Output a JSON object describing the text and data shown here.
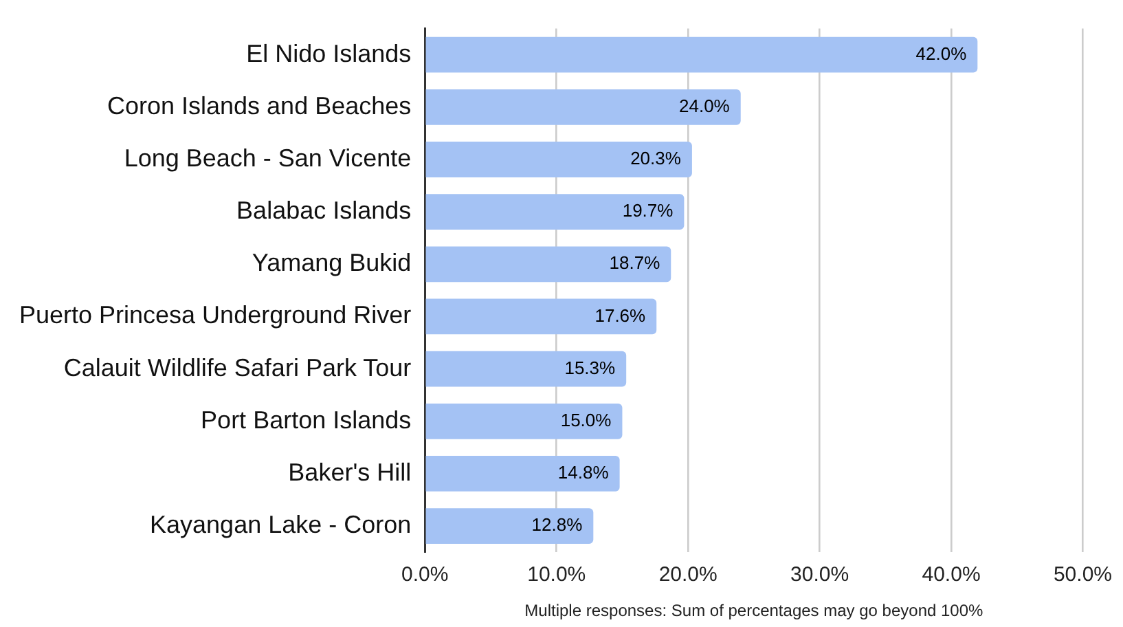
{
  "chart_data": {
    "type": "bar",
    "orientation": "horizontal",
    "xlabel": "Multiple responses: Sum of percentages may go beyond 100%",
    "categories": [
      "El Nido Islands",
      "Coron Islands and Beaches",
      "Long Beach - San Vicente",
      "Balabac Islands",
      "Yamang Bukid",
      "Puerto Princesa Underground River",
      "Calauit Wildlife Safari Park Tour",
      "Port Barton Islands",
      "Baker's Hill",
      "Kayangan Lake - Coron"
    ],
    "values": [
      42.0,
      24.0,
      20.3,
      19.7,
      18.7,
      17.6,
      15.3,
      15.0,
      14.8,
      12.8
    ],
    "value_labels": [
      "42.0%",
      "24.0%",
      "20.3%",
      "19.7%",
      "18.7%",
      "17.6%",
      "15.3%",
      "15.0%",
      "14.8%",
      "12.8%"
    ],
    "color": "#a4c2f4",
    "xlim": [
      0,
      50
    ],
    "xticks": [
      {
        "value": 0,
        "label": "0.0%"
      },
      {
        "value": 10,
        "label": "10.0%"
      },
      {
        "value": 20,
        "label": "20.0%"
      },
      {
        "value": 30,
        "label": "30.0%"
      },
      {
        "value": 40,
        "label": "40.0%"
      },
      {
        "value": 50,
        "label": "50.0%"
      }
    ],
    "grid": "x",
    "legend": false
  }
}
